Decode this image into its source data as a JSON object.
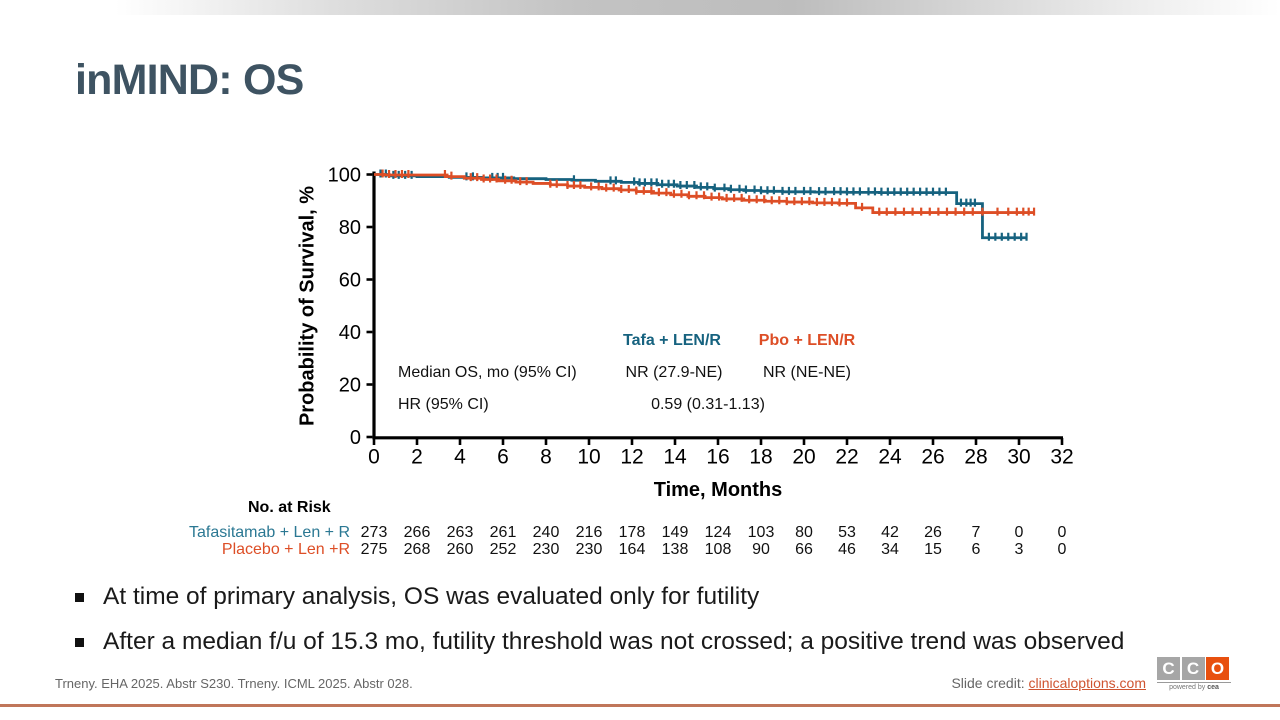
{
  "title": "inMIND: OS",
  "chart_data": {
    "type": "line",
    "subtype": "kaplan-meier-survival",
    "xlabel": "Time, Months",
    "ylabel": "Probability of Survival, %",
    "xlim": [
      0,
      32
    ],
    "ylim": [
      0,
      100
    ],
    "x_ticks": [
      0,
      2,
      4,
      6,
      8,
      10,
      12,
      14,
      16,
      18,
      20,
      22,
      24,
      26,
      28,
      30,
      32
    ],
    "y_ticks": [
      0,
      20,
      40,
      60,
      80,
      100
    ],
    "series": [
      {
        "name": "Tafa + LEN/R",
        "color": "#16627f",
        "points": [
          [
            0,
            100
          ],
          [
            0.7,
            99.5
          ],
          [
            2,
            99.2
          ],
          [
            3.5,
            98.9
          ],
          [
            5,
            98.7
          ],
          [
            6.5,
            98.4
          ],
          [
            8,
            98.1
          ],
          [
            9.2,
            97.8
          ],
          [
            10.3,
            97.4
          ],
          [
            11.5,
            97.0
          ],
          [
            12.3,
            96.6
          ],
          [
            13.2,
            96.1
          ],
          [
            14.1,
            95.6
          ],
          [
            15,
            95.1
          ],
          [
            15.8,
            94.6
          ],
          [
            16.5,
            94.2
          ],
          [
            17.2,
            93.9
          ],
          [
            18,
            93.6
          ],
          [
            19,
            93.4
          ],
          [
            20.5,
            93.3
          ],
          [
            22,
            93.2
          ],
          [
            23.5,
            93.1
          ],
          [
            27.1,
            88.9
          ],
          [
            28.3,
            75.9
          ],
          [
            30.35,
            75.9
          ]
        ],
        "censors": [
          0.3,
          0.55,
          0.9,
          1.15,
          1.45,
          1.75,
          4.3,
          4.6,
          5.5,
          5.75,
          6.0,
          9.3,
          11.0,
          11.25,
          12.1,
          12.35,
          12.6,
          12.9,
          13.15,
          13.4,
          13.7,
          13.95,
          14.25,
          14.55,
          14.9,
          15.2,
          15.5,
          15.85,
          16.3,
          16.6,
          17.0,
          17.3,
          17.7,
          18.0,
          18.3,
          18.6,
          19.0,
          19.3,
          19.6,
          20.0,
          20.3,
          20.7,
          21.0,
          21.4,
          21.7,
          22.0,
          22.3,
          22.6,
          23.0,
          23.3,
          23.6,
          23.9,
          24.2,
          24.5,
          24.8,
          25.1,
          25.4,
          25.7,
          26.0,
          26.3,
          26.6,
          27.3,
          27.55,
          27.75,
          27.95,
          28.6,
          28.9,
          29.2,
          29.5,
          29.8,
          30.1,
          30.35
        ]
      },
      {
        "name": "Pbo + LEN/R",
        "color": "#dd4e26",
        "points": [
          [
            0,
            100
          ],
          [
            0.5,
            99.8
          ],
          [
            3.4,
            99.2
          ],
          [
            4.2,
            98.6
          ],
          [
            5,
            98.1
          ],
          [
            5.8,
            97.6
          ],
          [
            6.6,
            97.1
          ],
          [
            7.4,
            96.6
          ],
          [
            8.2,
            96.1
          ],
          [
            9,
            95.6
          ],
          [
            9.8,
            95.1
          ],
          [
            10.6,
            94.6
          ],
          [
            11.4,
            94.1
          ],
          [
            12.2,
            93.5
          ],
          [
            13,
            92.9
          ],
          [
            13.8,
            92.3
          ],
          [
            14.6,
            91.7
          ],
          [
            15.4,
            91.2
          ],
          [
            16.2,
            90.7
          ],
          [
            17.2,
            90.2
          ],
          [
            18.2,
            89.8
          ],
          [
            19.2,
            89.5
          ],
          [
            20.4,
            89.2
          ],
          [
            21.6,
            89.0
          ],
          [
            22.4,
            87.3
          ],
          [
            23.2,
            85.5
          ],
          [
            30.7,
            85.5
          ]
        ],
        "censors": [
          0.4,
          0.7,
          1.0,
          1.3,
          1.6,
          3.3,
          3.6,
          4.5,
          4.8,
          5.1,
          5.4,
          5.7,
          6.1,
          6.4,
          6.8,
          7.1,
          8.2,
          8.5,
          9.0,
          9.3,
          9.6,
          10.1,
          10.45,
          10.8,
          11.15,
          11.5,
          11.85,
          12.2,
          12.55,
          12.9,
          13.25,
          13.6,
          13.95,
          14.3,
          14.65,
          15.0,
          15.35,
          15.7,
          16.05,
          16.4,
          16.75,
          17.1,
          17.45,
          17.8,
          18.15,
          18.5,
          18.85,
          19.2,
          19.55,
          19.9,
          20.25,
          20.6,
          20.95,
          21.3,
          21.65,
          22.0,
          22.7,
          23.5,
          23.85,
          24.25,
          24.65,
          25.05,
          25.45,
          25.85,
          26.25,
          26.65,
          27.05,
          27.45,
          27.85,
          28.3,
          29.0,
          29.5,
          29.9,
          30.2,
          30.45,
          30.7
        ]
      }
    ],
    "annotation_table": {
      "col_headers": [
        "Tafa + LEN/R",
        "Pbo + LEN/R"
      ],
      "rows": [
        {
          "label": "Median OS, mo (95% CI)",
          "values": [
            "NR (27.9-NE)",
            "NR (NE-NE)"
          ]
        },
        {
          "label": "HR (95% CI)",
          "merged_value": "0.59 (0.31-1.13)"
        }
      ]
    }
  },
  "at_risk": {
    "title": "No. at Risk",
    "rows": [
      {
        "label": "Tafasitamab + Len + R",
        "color": "#2b7893",
        "values": [
          273,
          266,
          263,
          261,
          240,
          216,
          178,
          149,
          124,
          103,
          80,
          53,
          42,
          26,
          7,
          0,
          0
        ]
      },
      {
        "label": "Placebo + Len +R",
        "color": "#dd4e26",
        "values": [
          275,
          268,
          260,
          252,
          230,
          230,
          164,
          138,
          108,
          90,
          66,
          46,
          34,
          15,
          6,
          3,
          0
        ]
      }
    ]
  },
  "bullets": [
    "At time of primary analysis, OS was evaluated only for futility",
    "After a median f/u of 15.3 mo, futility threshold was not crossed; a positive trend was observed"
  ],
  "footer": {
    "reference": "Trneny. EHA 2025. Abstr S230. Trneny. ICML 2025. Abstr 028.",
    "credit_label": "Slide credit:",
    "credit_link": "clinicaloptions.com"
  },
  "logo": {
    "letters": [
      "C",
      "C",
      "O"
    ],
    "tagline_prefix": "powered by",
    "tagline_brand": "cea",
    "gray": "#a6a6a6",
    "orange": "#e8500f"
  },
  "colors": {
    "teal": "#16627f",
    "orange": "#dd4e26",
    "title": "#3e5362",
    "bottom_line": "#c0765a"
  }
}
